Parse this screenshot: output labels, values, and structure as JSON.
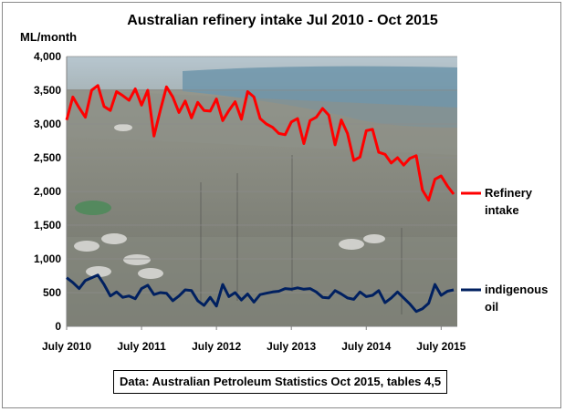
{
  "chart_data": {
    "type": "line",
    "title": "Australian refinery intake Jul 2010 - Oct 2015",
    "ylabel": "ML/month",
    "xlabel": "",
    "ylim": [
      0,
      4000
    ],
    "yticks": [
      "0",
      "500",
      "1,000",
      "1,500",
      "2,000",
      "2,500",
      "3,000",
      "3,500",
      "4,000"
    ],
    "ytick_values": [
      0,
      500,
      1000,
      1500,
      2000,
      2500,
      3000,
      3500,
      4000
    ],
    "xticks": [
      "July 2010",
      "July 2011",
      "July 2012",
      "July 2013",
      "July 2014",
      "July 2015"
    ],
    "xtick_months": [
      0,
      12,
      24,
      36,
      48,
      60
    ],
    "x_start": "2010-07",
    "x_end": "2015-10",
    "grid": "horizontal",
    "background": "photograph of an oil refinery beside a bay",
    "legend_position": "right",
    "series": [
      {
        "name": "Refinery intake",
        "color": "#ff0000",
        "values": [
          3060,
          3400,
          3240,
          3100,
          3500,
          3570,
          3260,
          3200,
          3480,
          3420,
          3350,
          3520,
          3280,
          3500,
          2820,
          3200,
          3550,
          3400,
          3170,
          3340,
          3090,
          3320,
          3200,
          3190,
          3370,
          3050,
          3200,
          3330,
          3070,
          3480,
          3400,
          3080,
          3000,
          2950,
          2860,
          2840,
          3030,
          3080,
          2710,
          3050,
          3100,
          3230,
          3130,
          2690,
          3060,
          2860,
          2460,
          2510,
          2900,
          2920,
          2580,
          2550,
          2420,
          2500,
          2390,
          2490,
          2530,
          2020,
          1870,
          2180,
          2230,
          2080,
          1960
        ]
      },
      {
        "name": "indigenous oil",
        "color": "#002060",
        "values": [
          720,
          650,
          560,
          680,
          720,
          760,
          620,
          450,
          510,
          430,
          450,
          410,
          560,
          610,
          470,
          500,
          490,
          380,
          450,
          540,
          530,
          380,
          310,
          430,
          300,
          620,
          440,
          500,
          390,
          480,
          360,
          470,
          490,
          510,
          520,
          560,
          550,
          570,
          550,
          560,
          510,
          430,
          420,
          530,
          480,
          420,
          400,
          510,
          440,
          460,
          530,
          350,
          420,
          510,
          420,
          330,
          220,
          260,
          340,
          620,
          460,
          520,
          540
        ]
      }
    ]
  },
  "source_note": "Data: Australian Petroleum Statistics Oct 2015, tables 4,5",
  "legend": {
    "refinery_lines": [
      "Refinery",
      "intake"
    ],
    "indigenous_lines": [
      "indigenous",
      "oil"
    ]
  }
}
